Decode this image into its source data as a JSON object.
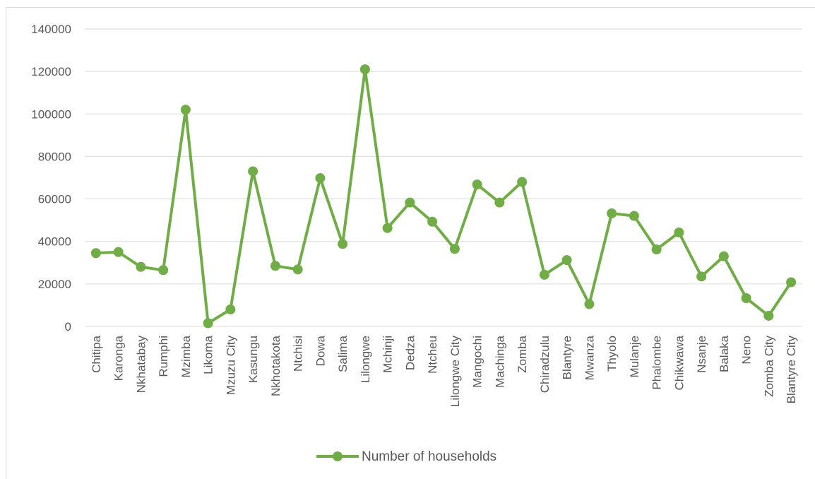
{
  "chart_data": {
    "type": "line",
    "categories": [
      "Chitipa",
      "Karonga",
      "Nkhatabay",
      "Rumphi",
      "Mzimba",
      "Likoma",
      "Mzuzu City",
      "Kasungu",
      "Nkhotakota",
      "Ntchisi",
      "Dowa",
      "Salima",
      "Lilongwe",
      "Mchinji",
      "Dedza",
      "Ntcheu",
      "Lilongwe City",
      "Mangochi",
      "Machinga",
      "Zomba",
      "Chiradzulu",
      "Blantyre",
      "Mwanza",
      "Thyolo",
      "Mulanje",
      "Phalombe",
      "Chikwawa",
      "Nsanje",
      "Balaka",
      "Neno",
      "Zomba City",
      "Blantyre City"
    ],
    "series": [
      {
        "name": "Number of households",
        "color": "#70ad47",
        "values": [
          34500,
          35000,
          28000,
          26500,
          102000,
          1500,
          8000,
          73000,
          28500,
          26800,
          69800,
          38800,
          121000,
          46300,
          58300,
          49300,
          36500,
          66800,
          58300,
          68000,
          24300,
          31200,
          10500,
          53200,
          52000,
          36200,
          44200,
          23500,
          33000,
          13300,
          5000,
          20800
        ]
      }
    ],
    "ylim": [
      0,
      140000
    ],
    "yticks": [
      "0",
      "20000",
      "40000",
      "60000",
      "80000",
      "100000",
      "120000",
      "140000"
    ],
    "grid": true,
    "legend": "bottom"
  }
}
